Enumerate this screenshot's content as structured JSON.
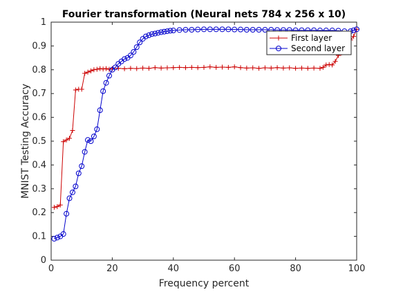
{
  "chart_data": {
    "type": "line",
    "title": "Fourier transformation (Neural nets 784 x 256 x 10)",
    "xlabel": "Frequency percent",
    "ylabel": "MNIST Testing Accuracy",
    "xlim": [
      0,
      100
    ],
    "ylim": [
      0,
      1
    ],
    "xticks": [
      0,
      20,
      40,
      60,
      80,
      100
    ],
    "yticks": [
      0,
      0.1,
      0.2,
      0.3,
      0.4,
      0.5,
      0.6,
      0.7,
      0.8,
      0.9,
      1
    ],
    "grid": false,
    "legend_position": "top-right",
    "series": [
      {
        "name": "First layer",
        "color": "#cc0000",
        "marker": "plus",
        "x": [
          1,
          2,
          3,
          4,
          5,
          6,
          7,
          8,
          9,
          10,
          11,
          12,
          13,
          14,
          15,
          16,
          17,
          18,
          19,
          20,
          22,
          24,
          26,
          28,
          30,
          32,
          34,
          36,
          38,
          40,
          42,
          44,
          46,
          48,
          50,
          52,
          54,
          56,
          58,
          60,
          62,
          64,
          66,
          68,
          70,
          72,
          74,
          76,
          78,
          80,
          82,
          84,
          86,
          88,
          89,
          90,
          91,
          92,
          93,
          94,
          95,
          96,
          97,
          98,
          99,
          100
        ],
        "y": [
          0.222,
          0.225,
          0.232,
          0.498,
          0.505,
          0.512,
          0.545,
          0.715,
          0.718,
          0.718,
          0.785,
          0.79,
          0.795,
          0.8,
          0.802,
          0.805,
          0.803,
          0.805,
          0.802,
          0.805,
          0.806,
          0.804,
          0.806,
          0.805,
          0.807,
          0.806,
          0.809,
          0.807,
          0.808,
          0.809,
          0.81,
          0.809,
          0.81,
          0.809,
          0.81,
          0.812,
          0.81,
          0.811,
          0.81,
          0.812,
          0.809,
          0.807,
          0.808,
          0.806,
          0.808,
          0.807,
          0.809,
          0.807,
          0.808,
          0.806,
          0.807,
          0.806,
          0.807,
          0.806,
          0.81,
          0.82,
          0.822,
          0.82,
          0.835,
          0.86,
          0.87,
          0.9,
          0.92,
          0.925,
          0.94,
          0.97
        ]
      },
      {
        "name": "Second layer",
        "color": "#0000cc",
        "marker": "circle",
        "x": [
          1,
          2,
          3,
          4,
          5,
          6,
          7,
          8,
          9,
          10,
          11,
          12,
          13,
          14,
          15,
          16,
          17,
          18,
          19,
          20,
          21,
          22,
          23,
          24,
          25,
          26,
          27,
          28,
          29,
          30,
          31,
          32,
          33,
          34,
          35,
          36,
          37,
          38,
          39,
          40,
          42,
          44,
          46,
          48,
          50,
          52,
          54,
          56,
          58,
          60,
          62,
          64,
          66,
          68,
          70,
          72,
          74,
          76,
          78,
          80,
          82,
          84,
          86,
          88,
          90,
          92,
          94,
          96,
          98,
          99,
          100
        ],
        "y": [
          0.09,
          0.095,
          0.1,
          0.11,
          0.195,
          0.26,
          0.285,
          0.31,
          0.365,
          0.395,
          0.455,
          0.505,
          0.5,
          0.52,
          0.55,
          0.63,
          0.71,
          0.745,
          0.775,
          0.8,
          0.81,
          0.825,
          0.835,
          0.845,
          0.85,
          0.86,
          0.875,
          0.895,
          0.915,
          0.93,
          0.94,
          0.945,
          0.95,
          0.952,
          0.955,
          0.958,
          0.96,
          0.962,
          0.964,
          0.965,
          0.967,
          0.968,
          0.968,
          0.969,
          0.97,
          0.97,
          0.97,
          0.97,
          0.97,
          0.969,
          0.969,
          0.968,
          0.968,
          0.968,
          0.968,
          0.968,
          0.967,
          0.967,
          0.967,
          0.966,
          0.966,
          0.966,
          0.966,
          0.965,
          0.965,
          0.965,
          0.964,
          0.962,
          0.962,
          0.966,
          0.97
        ]
      }
    ]
  }
}
